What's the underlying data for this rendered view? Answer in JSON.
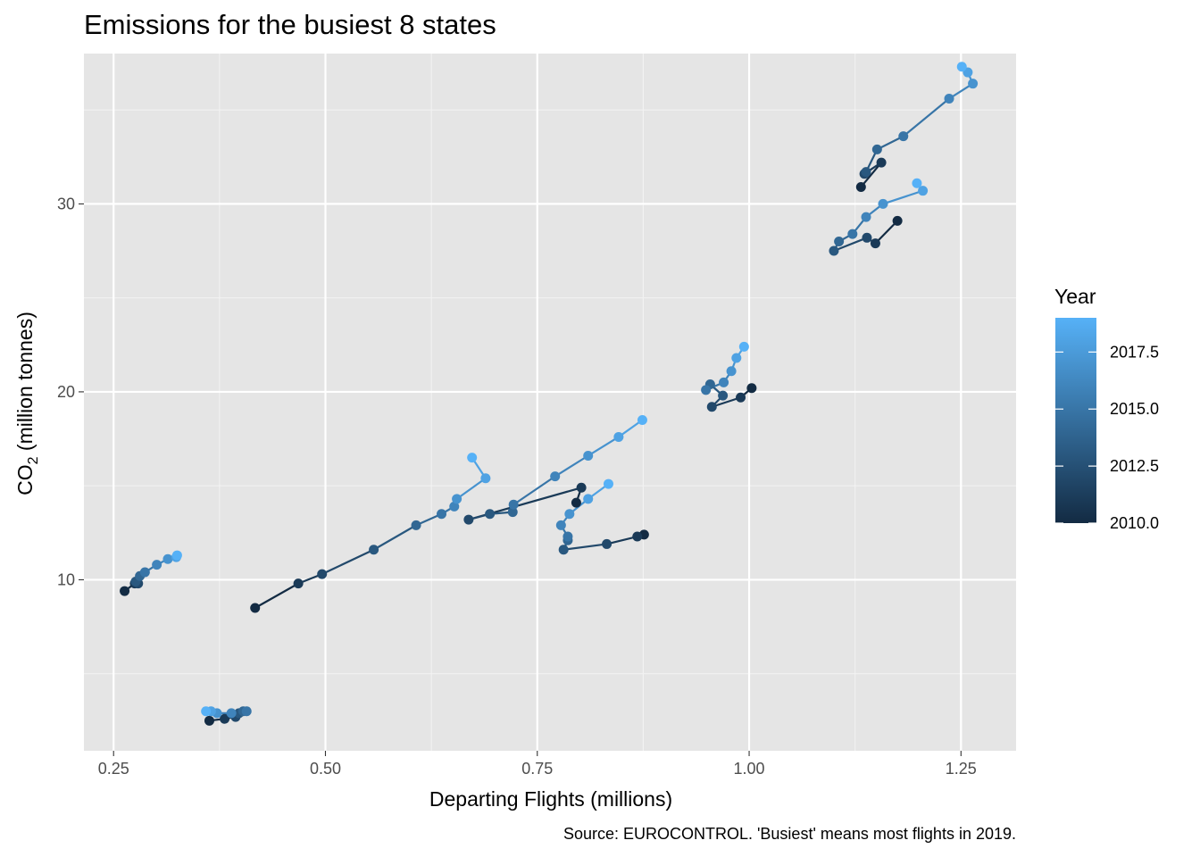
{
  "chart_data": {
    "type": "scatter",
    "title": "Emissions for the busiest 8 states",
    "xlabel": "Departing Flights (millions)",
    "ylabel_main": "CO",
    "ylabel_sub": "2",
    "ylabel_rest": " (million tonnes)",
    "caption": "Source: EUROCONTROL. 'Busiest' means most flights in 2019.",
    "xlim": [
      0.215,
      1.315
    ],
    "ylim": [
      0.9,
      38.0
    ],
    "x_ticks": [
      {
        "value": 0.25,
        "label": "0.25"
      },
      {
        "value": 0.5,
        "label": "0.50"
      },
      {
        "value": 0.75,
        "label": "0.75"
      },
      {
        "value": 1.0,
        "label": "1.00"
      },
      {
        "value": 1.25,
        "label": "1.25"
      }
    ],
    "y_ticks": [
      {
        "value": 10,
        "label": "10"
      },
      {
        "value": 20,
        "label": "20"
      },
      {
        "value": 30,
        "label": "30"
      }
    ],
    "grid": true,
    "panel_background": "#e5e5e5",
    "connected_by": "year",
    "color_scale": {
      "title": "Year",
      "low_color": "#132b43",
      "high_color": "#56b1f7",
      "min": 2010,
      "max": 2019,
      "ticks": [
        {
          "value": 2010.0,
          "label": "2010.0"
        },
        {
          "value": 2012.5,
          "label": "2012.5"
        },
        {
          "value": 2015.0,
          "label": "2015.0"
        },
        {
          "value": 2017.5,
          "label": "2017.5"
        }
      ],
      "legend_position": "right"
    },
    "series": [
      {
        "years": [
          2010,
          2011,
          2012,
          2013,
          2014,
          2015,
          2016,
          2017,
          2018,
          2019
        ],
        "x": [
          0.263,
          0.275,
          0.279,
          0.276,
          0.281,
          0.287,
          0.301,
          0.314,
          0.324,
          0.325
        ],
        "y": [
          9.4,
          9.8,
          9.8,
          9.9,
          10.2,
          10.4,
          10.8,
          11.1,
          11.2,
          11.3
        ]
      },
      {
        "years": [
          2010,
          2011,
          2012,
          2013,
          2014,
          2015,
          2016,
          2017,
          2018,
          2019
        ],
        "x": [
          0.363,
          0.381,
          0.394,
          0.398,
          0.403,
          0.407,
          0.389,
          0.372,
          0.365,
          0.359
        ],
        "y": [
          2.5,
          2.6,
          2.7,
          2.9,
          3.0,
          3.0,
          2.9,
          2.9,
          3.0,
          3.0
        ]
      },
      {
        "years": [
          2010,
          2011,
          2012,
          2013,
          2014,
          2015,
          2016,
          2017,
          2018,
          2019
        ],
        "x": [
          0.417,
          0.468,
          0.496,
          0.557,
          0.607,
          0.637,
          0.652,
          0.655,
          0.689,
          0.673
        ],
        "y": [
          8.5,
          9.8,
          10.3,
          11.6,
          12.9,
          13.5,
          13.9,
          14.3,
          15.4,
          16.5
        ]
      },
      {
        "years": [
          2010,
          2011,
          2012,
          2013,
          2014,
          2015,
          2016,
          2017,
          2018,
          2019
        ],
        "x": [
          0.796,
          0.802,
          0.669,
          0.694,
          0.721,
          0.722,
          0.771,
          0.81,
          0.846,
          0.874
        ],
        "y": [
          14.1,
          14.9,
          13.2,
          13.5,
          13.6,
          14.0,
          15.5,
          16.6,
          17.6,
          18.5
        ]
      },
      {
        "years": [
          2010,
          2011,
          2012,
          2013,
          2014,
          2015,
          2016,
          2017,
          2018,
          2019
        ],
        "x": [
          0.876,
          0.868,
          0.832,
          0.781,
          0.786,
          0.786,
          0.778,
          0.788,
          0.81,
          0.834
        ],
        "y": [
          12.4,
          12.3,
          11.9,
          11.6,
          12.1,
          12.3,
          12.9,
          13.5,
          14.3,
          15.1
        ]
      },
      {
        "years": [
          2010,
          2011,
          2012,
          2013,
          2014,
          2015,
          2016,
          2017,
          2018,
          2019
        ],
        "x": [
          1.003,
          0.99,
          0.956,
          0.969,
          0.954,
          0.949,
          0.97,
          0.979,
          0.985,
          0.994
        ],
        "y": [
          20.2,
          19.7,
          19.2,
          19.8,
          20.4,
          20.1,
          20.5,
          21.1,
          21.8,
          22.4
        ]
      },
      {
        "years": [
          2010,
          2011,
          2012,
          2013,
          2014,
          2015,
          2016,
          2017,
          2018,
          2019
        ],
        "x": [
          1.175,
          1.149,
          1.139,
          1.1,
          1.106,
          1.122,
          1.138,
          1.158,
          1.205,
          1.198
        ],
        "y": [
          29.1,
          27.9,
          28.2,
          27.5,
          28.0,
          28.4,
          29.3,
          30.0,
          30.7,
          31.1
        ]
      },
      {
        "years": [
          2010,
          2011,
          2012,
          2013,
          2014,
          2015,
          2016,
          2017,
          2018,
          2019
        ],
        "x": [
          1.132,
          1.156,
          1.136,
          1.138,
          1.151,
          1.182,
          1.236,
          1.264,
          1.258,
          1.251
        ],
        "y": [
          30.9,
          32.2,
          31.6,
          31.7,
          32.9,
          33.6,
          35.6,
          36.4,
          37.0,
          37.3
        ]
      }
    ]
  }
}
